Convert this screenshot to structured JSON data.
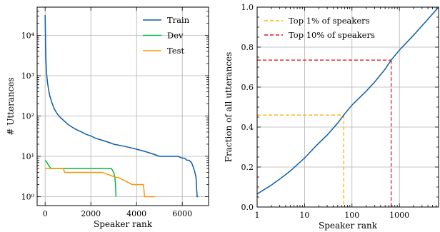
{
  "chart_data": [
    {
      "type": "line",
      "xlabel": "Speaker rank",
      "ylabel": "# Utterances",
      "yscale": "log",
      "xlim": [
        -350,
        7150
      ],
      "ylim": [
        0.6,
        50000
      ],
      "grid": true,
      "legend_position": "top-right",
      "x_ticks": [
        0,
        2000,
        4000,
        6000
      ],
      "x_tick_labels": [
        "0",
        "2000",
        "4000",
        "6000"
      ],
      "y_ticks": [
        1,
        10,
        100,
        1000,
        10000
      ],
      "y_tick_labels": [
        "10⁰",
        "10¹",
        "10²",
        "10³",
        "10⁴"
      ],
      "series": [
        {
          "name": "Train",
          "color": "#0C5DA5",
          "x": [
            0,
            20,
            40,
            60,
            100,
            150,
            200,
            300,
            400,
            500,
            600,
            800,
            1000,
            1200,
            1400,
            1600,
            1800,
            2000,
            2200,
            2400,
            2600,
            2800,
            3000,
            3200,
            3400,
            3600,
            3800,
            4000,
            4200,
            4400,
            4600,
            4800,
            5000,
            5200,
            5400,
            5600,
            5800,
            6000,
            6100,
            6200,
            6300,
            6400,
            6450,
            6500,
            6550,
            6600,
            6650,
            6700
          ],
          "y": [
            32000,
            5000,
            2000,
            1200,
            700,
            450,
            320,
            210,
            150,
            120,
            100,
            78,
            62,
            52,
            45,
            40,
            35,
            32,
            28,
            26,
            24,
            22,
            20,
            19,
            18,
            17,
            16,
            15,
            14,
            13,
            12,
            11,
            10,
            10,
            10,
            10,
            10,
            9,
            9,
            8,
            8,
            7,
            6,
            5,
            4,
            3,
            1,
            1
          ]
        },
        {
          "name": "Dev",
          "color": "#00B945",
          "x": [
            0,
            80,
            150,
            250,
            400,
            800,
            1500,
            2000,
            2500,
            2900,
            3000,
            3050,
            3080,
            3100
          ],
          "y": [
            8,
            7,
            6,
            5,
            5,
            5,
            5,
            5,
            5,
            5,
            4,
            3,
            2,
            1
          ]
        },
        {
          "name": "Test",
          "color": "#FF9500",
          "x": [
            0,
            800,
            850,
            2000,
            2500,
            3100,
            3200,
            3800,
            4300,
            4350,
            4800
          ],
          "y": [
            5,
            5,
            4,
            4,
            4,
            3,
            3,
            2,
            2,
            1,
            1
          ]
        }
      ]
    },
    {
      "type": "line",
      "xlabel": "Speaker rank",
      "ylabel": "Fraction of all utterances",
      "xscale": "log",
      "xlim": [
        1,
        6700
      ],
      "ylim": [
        0.0,
        1.0
      ],
      "grid": true,
      "legend_position": "top-left",
      "x_ticks": [
        1,
        10,
        100,
        1000
      ],
      "x_tick_labels": [
        "1",
        "10",
        "100",
        "1000"
      ],
      "y_ticks": [
        0.0,
        0.2,
        0.4,
        0.6,
        0.8,
        1.0
      ],
      "y_tick_labels": [
        "0.0",
        "0.2",
        "0.4",
        "0.6",
        "0.8",
        "1.0"
      ],
      "series": [
        {
          "name": "",
          "color": "#0C5DA5",
          "x": [
            1,
            2,
            3,
            5,
            10,
            20,
            30,
            50,
            67,
            100,
            200,
            300,
            500,
            670,
            1000,
            2000,
            4000,
            6700
          ],
          "y": [
            0.065,
            0.11,
            0.14,
            0.18,
            0.245,
            0.32,
            0.36,
            0.42,
            0.46,
            0.51,
            0.58,
            0.625,
            0.69,
            0.735,
            0.785,
            0.86,
            0.94,
            1.0
          ]
        }
      ],
      "annotations": [
        {
          "name": "Top 1% of speakers",
          "color": "#FFB000",
          "x": 67,
          "y": 0.46
        },
        {
          "name": "Top 10% of speakers",
          "color": "#E2161D",
          "x": 670,
          "y": 0.735
        }
      ]
    }
  ]
}
